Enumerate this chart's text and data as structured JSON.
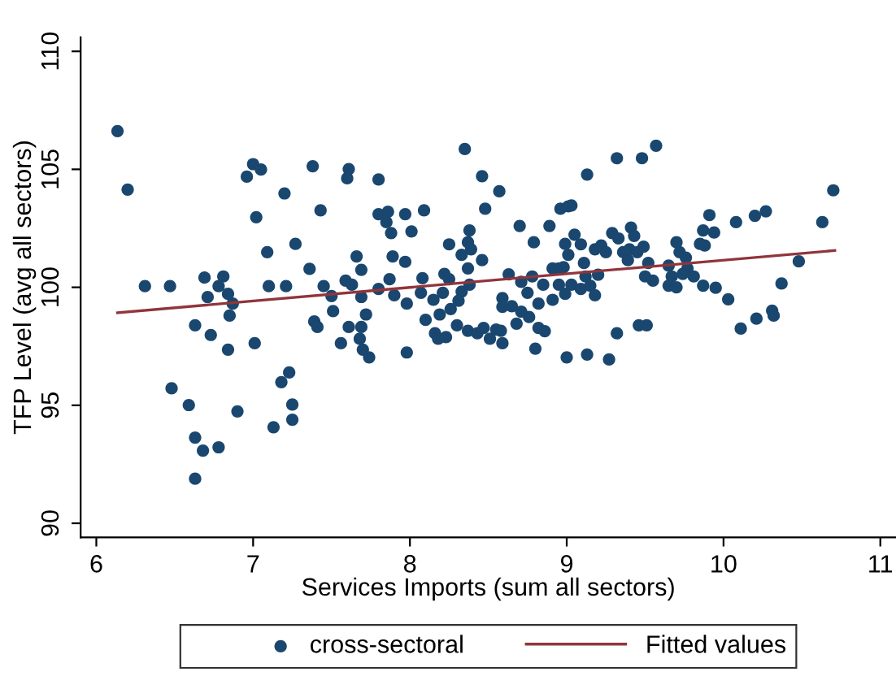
{
  "chart_data": {
    "type": "scatter",
    "xlabel": "Services Imports (sum all sectors)",
    "ylabel": "TFP Level (avg all sectors)",
    "xlim": [
      5.9,
      11.1
    ],
    "ylim": [
      89.4,
      110.6
    ],
    "xticks": [
      6,
      7,
      8,
      9,
      10,
      11
    ],
    "yticks": [
      90,
      95,
      100,
      105,
      110
    ],
    "grid": false,
    "legend": "bottom",
    "marker": "circle",
    "series": [
      {
        "name": "cross-sectoral",
        "type": "scatter",
        "color": "#1a476f",
        "x": [
          6.135,
          6.2,
          6.31,
          6.47,
          6.63,
          6.73,
          6.69,
          6.71,
          6.81,
          6.78,
          6.84,
          6.87,
          6.85,
          6.84,
          6.48,
          6.59,
          6.63,
          6.68,
          6.78,
          6.63,
          6.9,
          7.01,
          7.02,
          6.96,
          7.0,
          7.05,
          7.09,
          7.1,
          7.2,
          7.21,
          7.27,
          7.18,
          7.23,
          7.25,
          7.25,
          7.13,
          7.38,
          7.43,
          7.36,
          7.45,
          7.5,
          7.51,
          7.39,
          7.41,
          7.56,
          7.61,
          7.6,
          7.66,
          7.69,
          7.59,
          7.63,
          7.69,
          7.72,
          7.61,
          7.69,
          7.68,
          7.7,
          7.74,
          7.8,
          7.8,
          7.86,
          7.85,
          7.88,
          7.89,
          7.87,
          7.8,
          7.9,
          7.97,
          8.01,
          7.97,
          7.98,
          7.98,
          8.09,
          8.08,
          8.07,
          8.1,
          8.15,
          8.19,
          8.16,
          8.18,
          8.23,
          8.22,
          8.25,
          8.25,
          8.21,
          8.26,
          8.3,
          8.33,
          8.37,
          8.38,
          8.39,
          8.46,
          8.37,
          8.38,
          8.33,
          8.31,
          8.37,
          8.43,
          8.47,
          8.35,
          8.46,
          8.48,
          8.57,
          8.7,
          8.63,
          8.59,
          8.59,
          8.65,
          8.68,
          8.59,
          8.58,
          8.51,
          8.55,
          8.71,
          8.76,
          8.82,
          8.71,
          8.75,
          8.78,
          8.79,
          8.8,
          8.82,
          8.86,
          8.85,
          8.89,
          8.91,
          8.91,
          8.96,
          9.01,
          9.03,
          8.99,
          9.01,
          9.05,
          9.09,
          8.95,
          8.98,
          8.95,
          8.99,
          9.03,
          9.11,
          9.12,
          9.09,
          9.15,
          9.18,
          9.2,
          9.13,
          9.0,
          9.13,
          9.18,
          9.22,
          9.25,
          9.29,
          9.33,
          9.32,
          9.32,
          9.27,
          9.36,
          9.39,
          9.41,
          9.43,
          9.4,
          9.45,
          9.48,
          9.57,
          9.49,
          9.52,
          9.5,
          9.55,
          9.46,
          9.51,
          9.65,
          9.67,
          9.65,
          9.7,
          9.7,
          9.72,
          9.76,
          9.77,
          9.81,
          9.74,
          9.87,
          9.85,
          9.88,
          9.87,
          9.91,
          9.94,
          9.95,
          10.03,
          10.08,
          10.11,
          10.2,
          10.27,
          10.21,
          10.31,
          10.32,
          10.37,
          10.48,
          10.63,
          10.7
        ],
        "values": [
          106.62,
          104.14,
          100.05,
          100.05,
          98.39,
          97.98,
          100.41,
          99.59,
          100.46,
          100.05,
          99.72,
          99.31,
          98.8,
          97.36,
          95.72,
          95.01,
          93.63,
          93.08,
          93.22,
          91.89,
          94.74,
          97.63,
          102.97,
          104.69,
          105.22,
          104.99,
          101.49,
          100.05,
          103.98,
          100.05,
          101.84,
          95.98,
          96.39,
          95.03,
          94.39,
          94.07,
          105.13,
          103.26,
          100.78,
          100.05,
          99.63,
          98.99,
          98.55,
          98.32,
          97.63,
          105.01,
          104.62,
          101.31,
          100.74,
          100.28,
          100.11,
          99.59,
          98.85,
          98.32,
          98.32,
          97.82,
          97.36,
          97.03,
          104.57,
          103.1,
          103.2,
          102.76,
          102.3,
          101.31,
          100.34,
          99.93,
          99.66,
          103.1,
          102.37,
          101.08,
          99.31,
          97.24,
          103.26,
          100.39,
          99.77,
          98.62,
          99.47,
          98.85,
          98.05,
          97.82,
          97.89,
          100.57,
          101.82,
          100.34,
          99.77,
          99.08,
          98.39,
          101.38,
          101.91,
          102.41,
          101.61,
          101.15,
          100.8,
          100.11,
          99.82,
          99.43,
          98.16,
          98.05,
          98.28,
          105.86,
          104.71,
          103.33,
          104.07,
          102.6,
          100.55,
          99.54,
          99.17,
          99.2,
          98.46,
          97.63,
          98.16,
          97.82,
          98.21,
          98.97,
          98.74,
          99.31,
          100.23,
          99.77,
          100.46,
          101.91,
          97.4,
          98.28,
          98.14,
          100.11,
          102.6,
          100.8,
          99.47,
          103.33,
          103.43,
          103.47,
          101.84,
          101.38,
          102.23,
          101.82,
          100.8,
          100.85,
          100.11,
          99.72,
          100.11,
          101.03,
          100.46,
          99.93,
          100.07,
          99.66,
          100.53,
          104.78,
          97.03,
          97.15,
          101.61,
          101.77,
          101.49,
          102.3,
          102.07,
          105.47,
          98.05,
          96.94,
          101.49,
          101.15,
          102.53,
          102.18,
          101.61,
          101.49,
          105.47,
          106.0,
          101.72,
          101.03,
          100.46,
          100.28,
          98.39,
          98.39,
          100.92,
          100.46,
          100.07,
          100.0,
          101.91,
          101.49,
          101.26,
          100.8,
          100.46,
          100.57,
          100.07,
          101.84,
          101.77,
          102.41,
          103.06,
          102.32,
          99.98,
          99.49,
          102.76,
          98.25,
          103.03,
          103.22,
          98.67,
          99.01,
          98.8,
          100.16,
          101.1,
          102.76,
          104.11
        ]
      },
      {
        "name": "Fitted values",
        "type": "line",
        "color": "#90353b",
        "marker": "none",
        "x": [
          6.135,
          10.71
        ],
        "values": [
          98.92,
          101.56
        ]
      }
    ]
  }
}
